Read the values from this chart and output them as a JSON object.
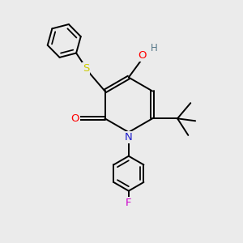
{
  "bg_color": "#ebebeb",
  "bond_color": "#000000",
  "bond_lw": 1.4,
  "atom_colors": {
    "O": "#ff0000",
    "N": "#2020cc",
    "S": "#cccc00",
    "F": "#cc00cc",
    "H": "#557788"
  },
  "font_size": 8.5
}
